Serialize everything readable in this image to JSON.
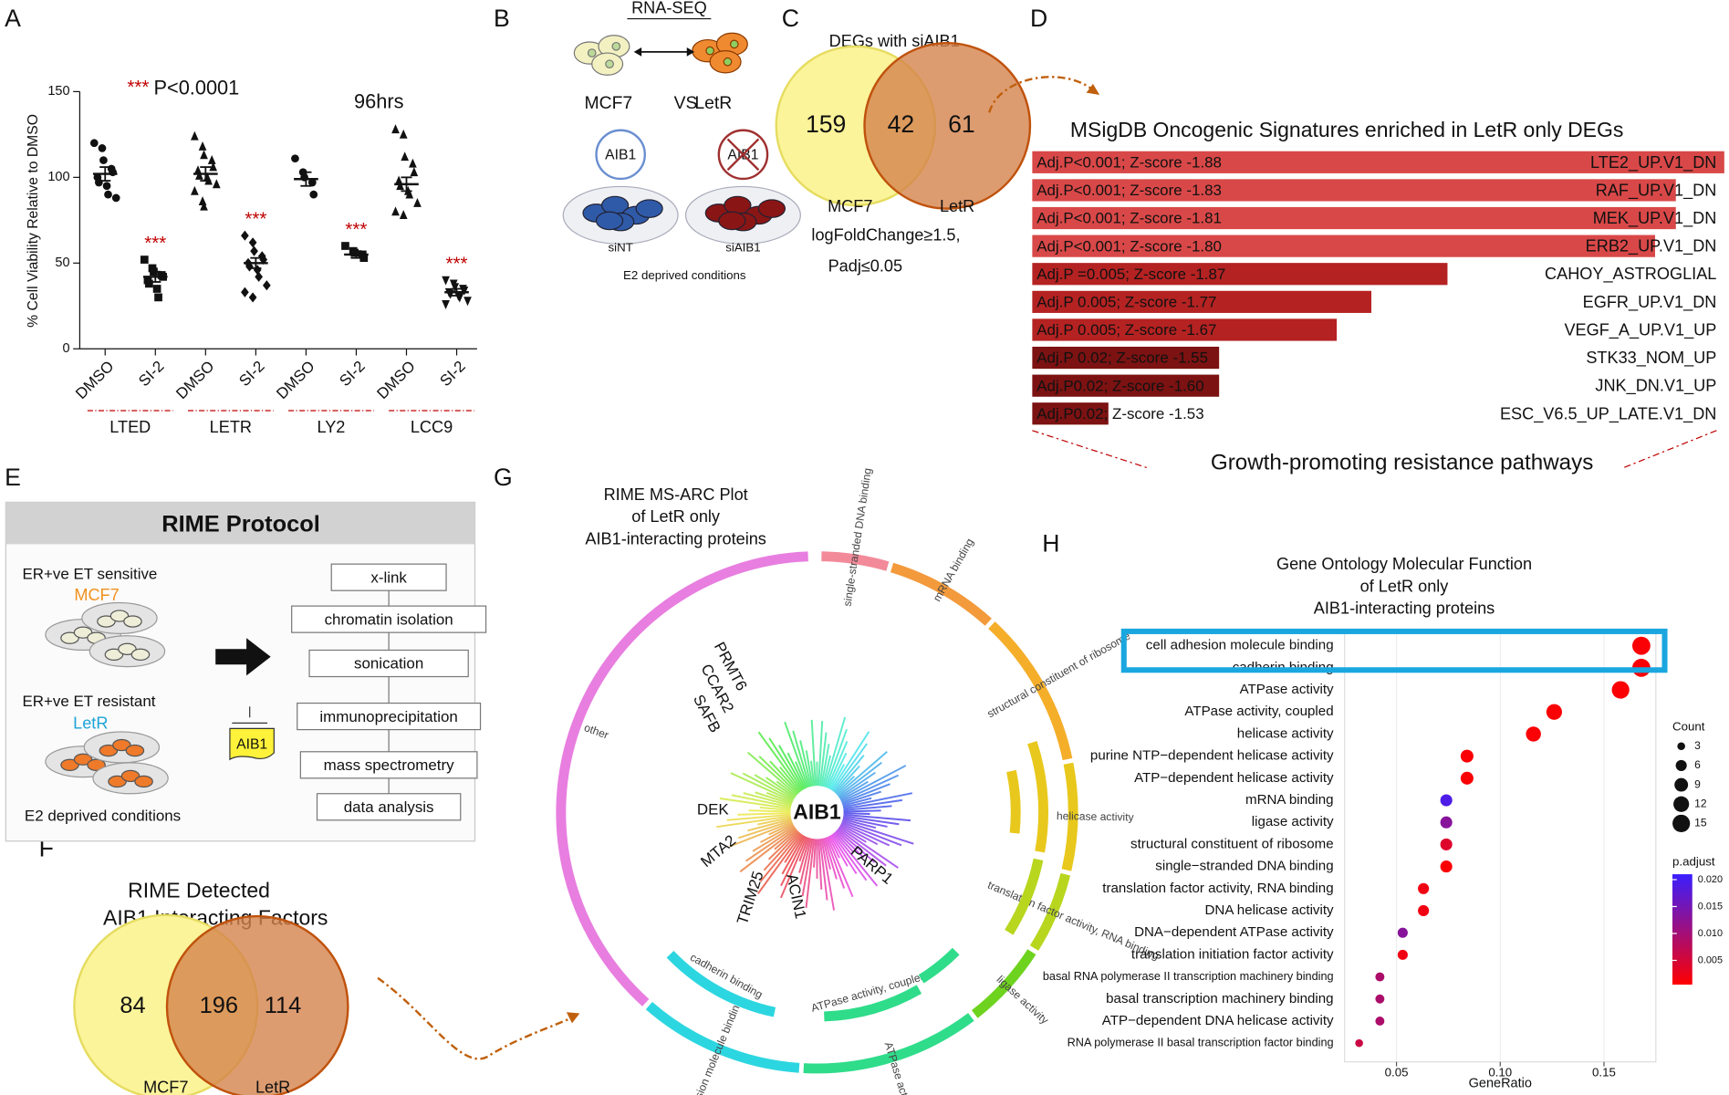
{
  "panel_labels": [
    "A",
    "B",
    "C",
    "D",
    "E",
    "F",
    "G",
    "H"
  ],
  "chart_data": [
    {
      "type": "dot_plot",
      "title": "96hrs",
      "annotation_stars": "***",
      "annotation": "P<0.0001",
      "y_label": "% Cell Viability Relative to DMSO",
      "categories": [
        "DMSO",
        "SI-2",
        "DMSO",
        "SI-2",
        "DMSO",
        "SI-2",
        "DMSO",
        "SI-2"
      ],
      "groups": [
        "LTED",
        "LETR",
        "LY2",
        "LCC9"
      ],
      "markers": [
        "circle",
        "square",
        "triangle",
        "diamond",
        "circle",
        "square",
        "triangle",
        "triangle-down"
      ],
      "points": [
        [
          120,
          117,
          110,
          105,
          103,
          100,
          97,
          95,
          90,
          88
        ],
        [
          52,
          47,
          45,
          43,
          42,
          40,
          38,
          35,
          30
        ],
        [
          124,
          118,
          113,
          110,
          106,
          104,
          101,
          100,
          98,
          96,
          92,
          86,
          83
        ],
        [
          66,
          62,
          57,
          54,
          52,
          50,
          48,
          46,
          42,
          37,
          33,
          30
        ],
        [
          111,
          103,
          100,
          97,
          90
        ],
        [
          60,
          57,
          56,
          55,
          53
        ],
        [
          128,
          125,
          112,
          108,
          103,
          98,
          95,
          92,
          90,
          85,
          80,
          78
        ],
        [
          40,
          38,
          36,
          35,
          34,
          33,
          32,
          31,
          30,
          28,
          26
        ]
      ],
      "values": [
        102,
        42,
        102,
        50,
        99,
        55,
        96,
        33
      ],
      "errors": [
        4,
        3,
        4,
        3,
        4,
        2,
        4,
        2
      ],
      "significance": [
        null,
        "***",
        null,
        "***",
        null,
        "***",
        null,
        "***"
      ],
      "color": "#111111",
      "significance_color": "#c00000",
      "group_line_color": "#c00000",
      "ylim": [
        0,
        150
      ],
      "yticks": [
        0,
        50,
        100,
        150
      ]
    },
    {
      "type": "bar_horizontal",
      "title": "MSigDB Oncogenic Signatures enriched in LetR only DEGs",
      "categories": [
        "LTE2_UP.V1_DN",
        "RAF_UP.V1_DN",
        "MEK_UP.V1_DN",
        "ERB2_UP.V1_DN",
        "CAHOY_ASTROGLIAL",
        "EGFR_UP.V1_DN",
        "VEGF_A_UP.V1_UP",
        "STK33_NOM_UP",
        "JNK_DN.V1_UP",
        "ESC_V6.5_UP_LATE.V1_DN"
      ],
      "values": [
        100,
        93,
        93,
        90,
        60,
        49,
        44,
        27,
        27,
        11
      ],
      "annotations": [
        "Adj.P<0.001; Z-score -1.88",
        "Adj.P<0.001; Z-score -1.83",
        "Adj.P<0.001; Z-score -1.81",
        "Adj.P<0.001; Z-score -1.80",
        "Adj.P =0.005; Z-score -1.87",
        "Adj.P 0.005; Z-score -1.77",
        "Adj.P 0.005; Z-score -1.67",
        "Adj.P 0.02; Z-score -1.55",
        "Adj.P0.02; Z-score -1.60",
        "Adj.P0.02; Z-score -1.53"
      ],
      "colors": [
        "#d94848",
        "#d94848",
        "#d94848",
        "#d94848",
        "#b52222",
        "#b52222",
        "#b52222",
        "#7c1212",
        "#7c1212",
        "#7c1212"
      ],
      "xlim": [
        0,
        100
      ],
      "footer": "Growth-promoting resistance pathways"
    },
    {
      "type": "dot",
      "title_lines": [
        "Gene Ontology Molecular Function",
        "of LetR only",
        "AIB1-interacting proteins"
      ],
      "categories": [
        "cell adhesion molecule binding",
        "cadherin binding",
        "ATPase activity",
        "ATPase activity, coupled",
        "helicase activity",
        "purine NTP−dependent helicase activity",
        "ATP−dependent helicase activity",
        "mRNA binding",
        "ligase activity",
        "structural constituent of ribosome",
        "single−stranded DNA binding",
        "translation factor activity, RNA binding",
        "DNA helicase activity",
        "DNA−dependent ATPase activity",
        "translation initiation factor activity",
        "basal RNA polymerase II transcription machinery binding",
        "basal transcription machinery binding",
        "ATP−dependent DNA helicase activity",
        "RNA polymerase II basal transcription factor binding"
      ],
      "x": [
        0.168,
        0.168,
        0.158,
        0.126,
        0.116,
        0.084,
        0.084,
        0.074,
        0.074,
        0.074,
        0.074,
        0.063,
        0.063,
        0.053,
        0.053,
        0.042,
        0.042,
        0.042,
        0.032
      ],
      "sizes": [
        16,
        16,
        15,
        12,
        11,
        8,
        8,
        7,
        7,
        7,
        7,
        6,
        6,
        5,
        5,
        4,
        4,
        4,
        3
      ],
      "p_adjust": [
        0.001,
        0.001,
        0.001,
        0.001,
        0.001,
        0.001,
        0.001,
        0.019,
        0.013,
        0.004,
        0.001,
        0.002,
        0.002,
        0.013,
        0.002,
        0.009,
        0.009,
        0.009,
        0.006
      ],
      "xlim": [
        0.025,
        0.175
      ],
      "xticks": [
        0.05,
        {
          "value": 0.1,
          "label": "0.10"
        },
        0.15
      ],
      "x_label": "GeneRatio",
      "size_legend": {
        "title": "Count",
        "values": [
          3,
          6,
          9,
          12,
          15
        ]
      },
      "color_legend": {
        "title": "p.adjust",
        "clim": [
          0.0005,
          0.021
        ],
        "ticks": [
          0.005,
          {
            "value": 0.01,
            "label": "0.010"
          },
          0.015,
          {
            "value": 0.02,
            "label": "0.020"
          }
        ],
        "low_color": "#ff0000",
        "high_color": "#3a1fff"
      },
      "highlight_color": "#1aa7e0"
    }
  ],
  "panel_b": {
    "title": "RNA-SEQ",
    "left": "MCF7",
    "vs": "VS",
    "right": "LetR",
    "dish_left_label": "AIB1",
    "dish_right_label": "AIB1",
    "dish_left": "siNT",
    "dish_right": "siAIB1",
    "caption": "E2 deprived conditions"
  },
  "panel_c": {
    "title": "DEGs with siAIB1",
    "left_only": 159,
    "overlap": 42,
    "right_only": 61,
    "left": "MCF7",
    "right": "LetR",
    "criteria": [
      "logFoldChange≥1.5,",
      "Padj≤0.05"
    ]
  },
  "panel_e": {
    "title": "RIME Protocol",
    "sensitive": "ER+ve ET sensitive",
    "sensitive_line": "MCF7",
    "resistant": "ER+ve ET resistant",
    "resistant_line": "LetR",
    "bait": "AIB1",
    "caption": "E2 deprived conditions",
    "steps": [
      "x-link",
      "chromatin isolation",
      "sonication",
      "immunoprecipitation",
      "mass spectrometry",
      "data analysis"
    ]
  },
  "panel_f": {
    "title": [
      "RIME Detected",
      "AIB1 Interacting Factors"
    ],
    "left_only": 84,
    "overlap": 196,
    "right_only": 114,
    "left": "MCF7",
    "right": "LetR"
  },
  "panel_g": {
    "title": [
      "RIME MS-ARC Plot",
      "of LetR only",
      "AIB1-interacting proteins"
    ],
    "center": "AIB1",
    "proteins": [
      "PRMT6",
      "CCAR2",
      "SAFB",
      "DEK",
      "MTA2",
      "TRIM25",
      "ACIN1",
      "PARP1"
    ],
    "arcs": [
      "other",
      "single-stranded DNA binding",
      "mRNA binding",
      "structural constituent of ribosome",
      "helicase activity",
      "translation factor activity, RNA binding",
      "ligase activity",
      "ATPase activity",
      "cell adhesion molecule binding"
    ],
    "inner_arcs": [
      "cadherin binding",
      "ATPase activity, coupled"
    ]
  }
}
